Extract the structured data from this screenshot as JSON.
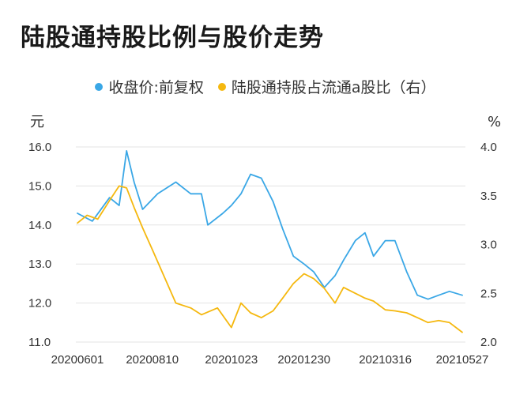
{
  "title": "陆股通持股比例与股价走势",
  "legend": {
    "price": "收盘价:前复权",
    "ratio": "陆股通持股占流通a股比（右）"
  },
  "colors": {
    "price": "#3aa7e6",
    "ratio": "#f5b80f",
    "grid": "#e3e3e3"
  },
  "chart_data": {
    "type": "line",
    "title": "陆股通持股比例与股价走势",
    "left_unit": "元",
    "right_unit": "%",
    "left_ylim": [
      11.0,
      16.0
    ],
    "right_ylim": [
      2.0,
      4.0
    ],
    "left_ticks": [
      "16.0",
      "15.0",
      "14.0",
      "13.0",
      "12.0",
      "11.0"
    ],
    "right_ticks": [
      "4.0",
      "3.5",
      "3.0",
      "2.5",
      "2.0"
    ],
    "x_ticks": [
      "20200601",
      "20200810",
      "20201023",
      "20201230",
      "20210316",
      "20210527"
    ],
    "x_range": [
      "20200601",
      "20210527"
    ],
    "grid": "horizontal",
    "legend_position": "top",
    "series": [
      {
        "name": "收盘价:前复权",
        "axis": "left",
        "x": [
          "20200601",
          "20200615",
          "20200701",
          "20200710",
          "20200717",
          "20200724",
          "20200801",
          "20200815",
          "20200901",
          "20200915",
          "20200925",
          "20201001",
          "20201015",
          "20201023",
          "20201101",
          "20201110",
          "20201120",
          "20201201",
          "20201210",
          "20201220",
          "20201230",
          "20210108",
          "20210118",
          "20210128",
          "20210205",
          "20210216",
          "20210225",
          "20210305",
          "20210316",
          "20210325",
          "20210405",
          "20210415",
          "20210425",
          "20210505",
          "20210515",
          "20210527"
        ],
        "values": [
          14.3,
          14.1,
          14.7,
          14.5,
          15.9,
          15.1,
          14.4,
          14.8,
          15.1,
          14.8,
          14.8,
          14.0,
          14.3,
          14.5,
          14.8,
          15.3,
          15.2,
          14.6,
          13.9,
          13.2,
          13.0,
          12.8,
          12.4,
          12.7,
          13.1,
          13.6,
          13.8,
          13.2,
          13.6,
          13.6,
          12.8,
          12.2,
          12.1,
          12.2,
          12.3,
          12.2
        ]
      },
      {
        "name": "陆股通持股占流通a股比（右）",
        "axis": "right",
        "x": [
          "20200601",
          "20200610",
          "20200620",
          "20200701",
          "20200710",
          "20200717",
          "20200724",
          "20200801",
          "20200810",
          "20200820",
          "20200901",
          "20200915",
          "20200925",
          "20201010",
          "20201023",
          "20201101",
          "20201110",
          "20201120",
          "20201201",
          "20201210",
          "20201220",
          "20201230",
          "20210108",
          "20210118",
          "20210128",
          "20210205",
          "20210216",
          "20210225",
          "20210305",
          "20210316",
          "20210325",
          "20210405",
          "20210415",
          "20210425",
          "20210505",
          "20210515",
          "20210527"
        ],
        "values": [
          3.22,
          3.3,
          3.26,
          3.45,
          3.6,
          3.58,
          3.38,
          3.17,
          2.95,
          2.7,
          2.4,
          2.35,
          2.28,
          2.35,
          2.15,
          2.4,
          2.3,
          2.25,
          2.32,
          2.45,
          2.6,
          2.7,
          2.65,
          2.55,
          2.4,
          2.56,
          2.5,
          2.45,
          2.42,
          2.33,
          2.32,
          2.3,
          2.25,
          2.2,
          2.22,
          2.2,
          2.1
        ]
      }
    ]
  }
}
